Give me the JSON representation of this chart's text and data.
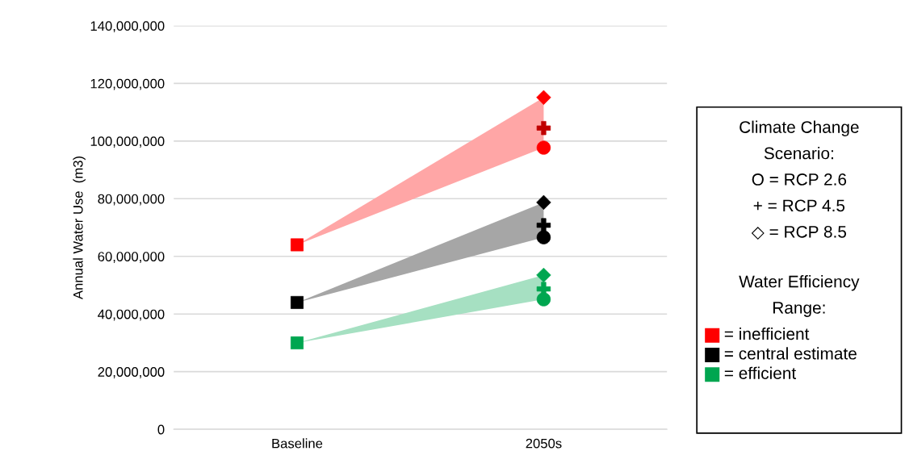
{
  "chart_data": {
    "type": "scatter",
    "ylabel": "Annual Water Use  (m3)",
    "categories": [
      "Baseline",
      "2050s"
    ],
    "ylim": [
      0,
      140000000
    ],
    "yticks": [
      {
        "value": 0,
        "label": "0"
      },
      {
        "value": 20000000,
        "label": "20,000,000"
      },
      {
        "value": 40000000,
        "label": "40,000,000"
      },
      {
        "value": 60000000,
        "label": "60,000,000"
      },
      {
        "value": 80000000,
        "label": "80,000,000"
      },
      {
        "value": 100000000,
        "label": "100,000,000"
      },
      {
        "value": 120000000,
        "label": "120,000,000"
      },
      {
        "value": 140000000,
        "label": "140,000,000"
      }
    ],
    "grid": "y",
    "legend": "right",
    "annotations": [
      "Climate Change Scenario:",
      "O = RCP 2.6",
      "+ = RCP 4.5",
      "◇ = RCP 8.5",
      "Water Efficiency Range:"
    ],
    "series": [
      {
        "name": "= inefficient",
        "marker": "square",
        "color": "#ff0000",
        "x": [
          "Baseline"
        ],
        "values": [
          64000000
        ]
      },
      {
        "name": "= central estimate",
        "marker": "square",
        "color": "#000000",
        "x": [
          "Baseline"
        ],
        "values": [
          44000000
        ]
      },
      {
        "name": "= efficient",
        "marker": "square",
        "color": "#00a650",
        "x": [
          "Baseline"
        ],
        "values": [
          30000000
        ]
      },
      {
        "marker": "diamond",
        "color": "#ff0000",
        "x": [
          "2050s"
        ],
        "values": [
          115100000
        ]
      },
      {
        "marker": "cross",
        "color": "#c00000",
        "x": [
          "2050s"
        ],
        "values": [
          104500000
        ]
      },
      {
        "marker": "circle",
        "color": "#ff0000",
        "x": [
          "2050s"
        ],
        "values": [
          97700000
        ]
      },
      {
        "marker": "diamond",
        "color": "#000000",
        "x": [
          "2050s"
        ],
        "values": [
          78700000
        ]
      },
      {
        "marker": "cross",
        "color": "#000000",
        "x": [
          "2050s"
        ],
        "values": [
          70800000
        ]
      },
      {
        "marker": "circle",
        "color": "#000000",
        "x": [
          "2050s"
        ],
        "values": [
          66600000
        ]
      },
      {
        "marker": "diamond",
        "color": "#00a650",
        "x": [
          "2050s"
        ],
        "values": [
          53500000
        ]
      },
      {
        "marker": "cross",
        "color": "#00a650",
        "x": [
          "2050s"
        ],
        "values": [
          48700000
        ]
      },
      {
        "marker": "circle",
        "color": "#00a650",
        "x": [
          "2050s"
        ],
        "values": [
          45100000
        ]
      }
    ]
  }
}
